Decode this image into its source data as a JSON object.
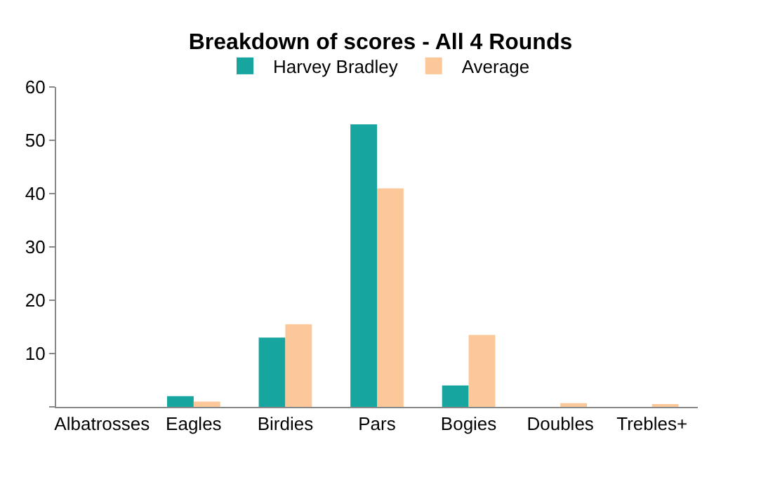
{
  "chart_data": {
    "type": "bar",
    "title": "Breakdown of scores - All 4 Rounds",
    "categories": [
      "Albatrosses",
      "Eagles",
      "Birdies",
      "Pars",
      "Bogies",
      "Doubles",
      "Trebles+"
    ],
    "series": [
      {
        "name": "Harvey Bradley",
        "color": "#17a5a0",
        "values": [
          0,
          2,
          13,
          53,
          4,
          0,
          0
        ]
      },
      {
        "name": "Average",
        "color": "#fcc89a",
        "values": [
          0,
          1,
          15.5,
          41,
          13.5,
          0.7,
          0.3
        ]
      }
    ],
    "ylim": [
      0,
      60
    ],
    "yticks": [
      {
        "value": 0,
        "label": null
      },
      10,
      20,
      30,
      40,
      50,
      60
    ],
    "legend": "top"
  }
}
